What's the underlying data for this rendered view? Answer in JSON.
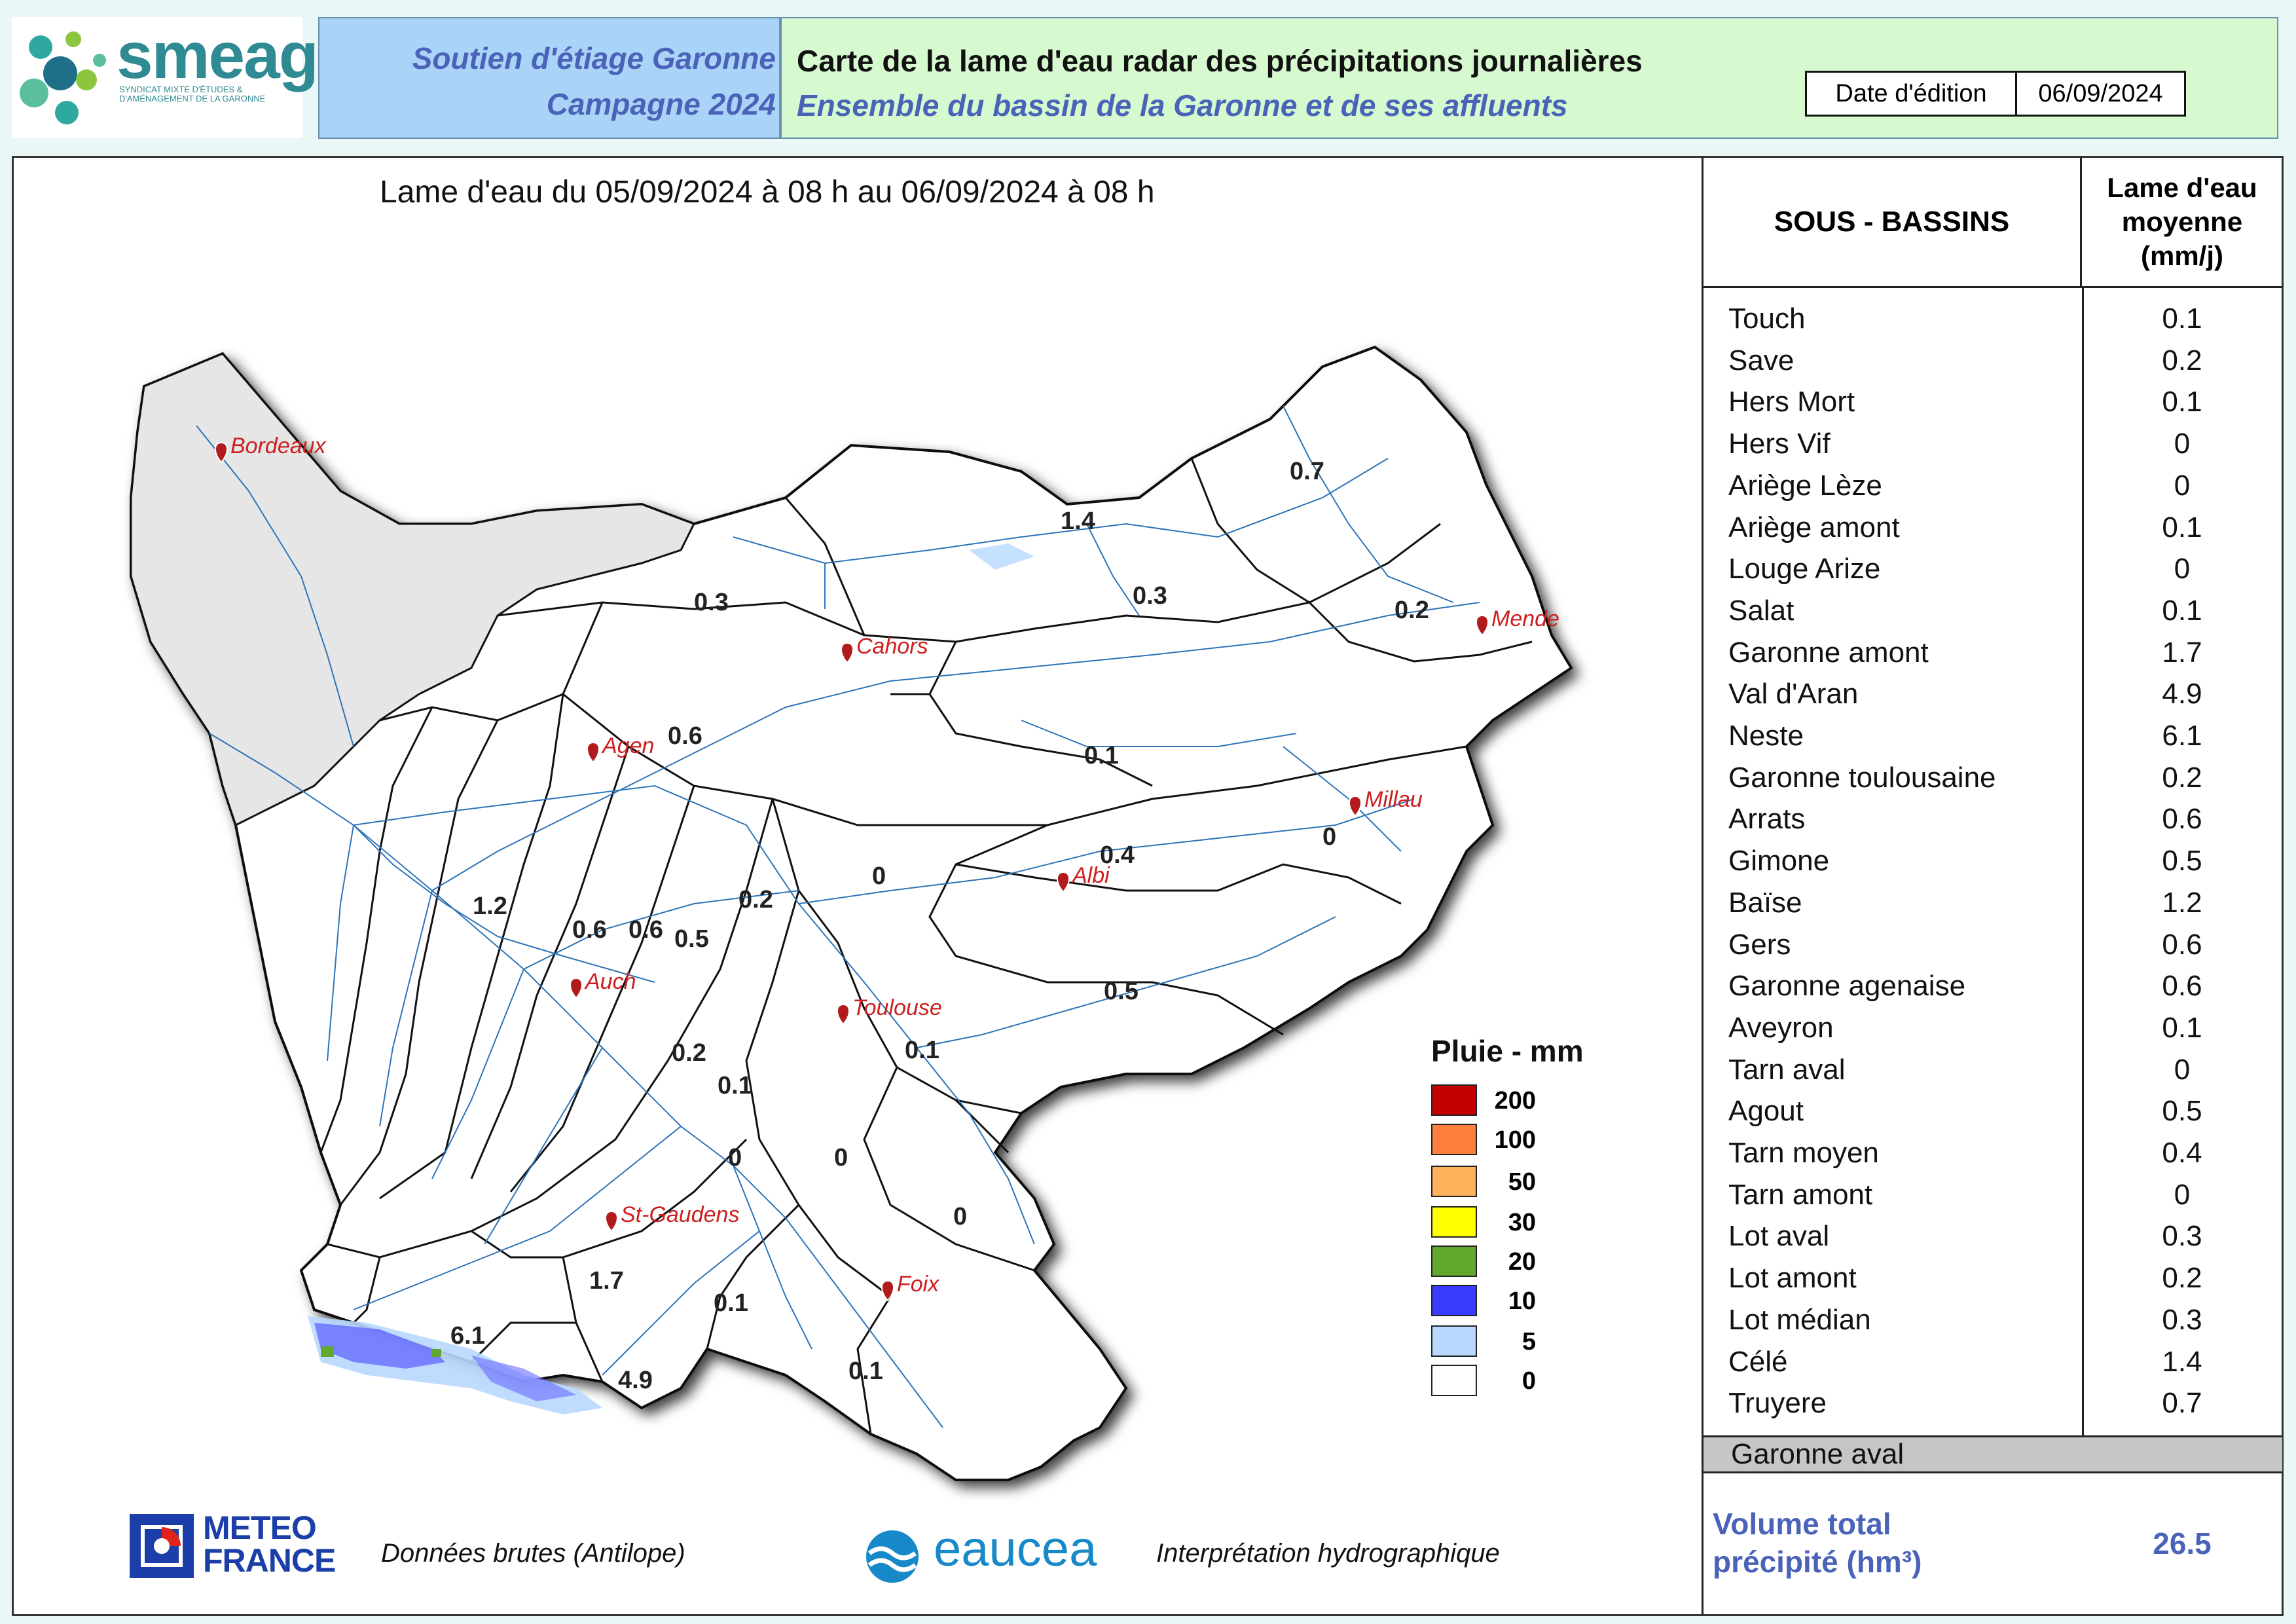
{
  "header": {
    "org_left": "Soutien d'étiage Garonne",
    "org_right": "Campagne 2024",
    "title": "Carte de la lame d'eau radar des précipitations journalières",
    "subtitle": "Ensemble du bassin de la Garonne et de ses affluents",
    "date_label": "Date d'édition",
    "date_value": "06/09/2024",
    "logo_name": "smeag",
    "logo_subtitle": "SYNDICAT MIXTE D'ÉTUDES & D'AMÉNAGEMENT DE LA GARONNE"
  },
  "map": {
    "period": "Lame d'eau du 05/09/2024  à 08 h au  06/09/2024   à 08 h",
    "cities": [
      "Bordeaux",
      "Cahors",
      "Mende",
      "Agen",
      "Millau",
      "Albi",
      "Auch",
      "Toulouse",
      "St-Gaudens",
      "Foix"
    ],
    "values": [
      "0.7",
      "1.4",
      "0.3",
      "0.3",
      "0.2",
      "0.6",
      "0.1",
      "1.2",
      "0",
      "0.4",
      "0",
      "0.6",
      "0.6",
      "0.5",
      "0.2",
      "0.5",
      "0.2",
      "0.1",
      "0.1",
      "0",
      "0",
      "0",
      "1.7",
      "0.1",
      "6.1",
      "4.9",
      "0.1"
    ]
  },
  "legend": {
    "title": "Pluie - mm",
    "items": [
      {
        "value": "200",
        "color": "#c40000"
      },
      {
        "value": "100",
        "color": "#ff7f3f"
      },
      {
        "value": "50",
        "color": "#ffb05a"
      },
      {
        "value": "30",
        "color": "#ffff00"
      },
      {
        "value": "20",
        "color": "#63a82e"
      },
      {
        "value": "10",
        "color": "#3b3bff"
      },
      {
        "value": "5",
        "color": "#b8d8ff"
      },
      {
        "value": "0",
        "color": "#ffffff"
      }
    ]
  },
  "table": {
    "col1": "SOUS - BASSINS",
    "col2_line1": "Lame d'eau",
    "col2_line2": "moyenne",
    "col2_line3": "(mm/j)",
    "rows": [
      {
        "name": "Touch",
        "value": "0.1"
      },
      {
        "name": "Save",
        "value": "0.2"
      },
      {
        "name": "Hers Mort",
        "value": "0.1"
      },
      {
        "name": "Hers Vif",
        "value": "0"
      },
      {
        "name": "Ariège Lèze",
        "value": "0"
      },
      {
        "name": "Ariège amont",
        "value": "0.1"
      },
      {
        "name": "Louge Arize",
        "value": "0"
      },
      {
        "name": "Salat",
        "value": "0.1"
      },
      {
        "name": "Garonne amont",
        "value": "1.7"
      },
      {
        "name": "Val d'Aran",
        "value": "4.9"
      },
      {
        "name": "Neste",
        "value": "6.1"
      },
      {
        "name": "Garonne toulousaine",
        "value": "0.2"
      },
      {
        "name": "Arrats",
        "value": "0.6"
      },
      {
        "name": "Gimone",
        "value": "0.5"
      },
      {
        "name": "Baïse",
        "value": "1.2"
      },
      {
        "name": "Gers",
        "value": "0.6"
      },
      {
        "name": "Garonne agenaise",
        "value": "0.6"
      },
      {
        "name": "Aveyron",
        "value": "0.1"
      },
      {
        "name": "Tarn aval",
        "value": "0"
      },
      {
        "name": "Agout",
        "value": "0.5"
      },
      {
        "name": "Tarn moyen",
        "value": "0.4"
      },
      {
        "name": "Tarn amont",
        "value": "0"
      },
      {
        "name": "Lot aval",
        "value": "0.3"
      },
      {
        "name": "Lot amont",
        "value": "0.2"
      },
      {
        "name": "Lot médian",
        "value": "0.3"
      },
      {
        "name": "Célé",
        "value": "1.4"
      },
      {
        "name": "Truyere",
        "value": "0.7"
      }
    ],
    "aval_row": "Garonne aval",
    "volume_label_1": "Volume total",
    "volume_label_2": "précipité (hm³)",
    "volume_value": "26.5"
  },
  "footer": {
    "meteo_line1": "METEO",
    "meteo_line2": "FRANCE",
    "meteo_caption": "Données brutes (Antilope)",
    "eaucea_name": "eaucea",
    "eaucea_caption": "Interprétation hydrographique"
  }
}
